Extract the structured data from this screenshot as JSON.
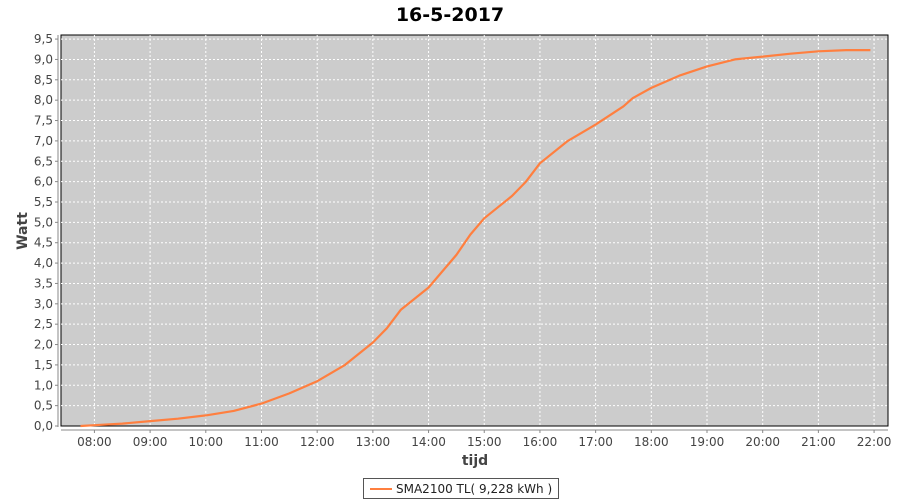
{
  "chart_data": {
    "type": "line",
    "title": "16-5-2017",
    "xlabel": "tijd",
    "ylabel": "Watt",
    "xlim": [
      "07:24",
      "22:15"
    ],
    "ylim": [
      0,
      9.6
    ],
    "x_ticks": [
      "08:00",
      "09:00",
      "10:00",
      "11:00",
      "12:00",
      "13:00",
      "14:00",
      "15:00",
      "16:00",
      "17:00",
      "18:00",
      "19:00",
      "20:00",
      "21:00",
      "22:00"
    ],
    "y_ticks": [
      "0,0",
      "0,5",
      "1,0",
      "1,5",
      "2,0",
      "2,5",
      "3,0",
      "3,5",
      "4,0",
      "4,5",
      "5,0",
      "5,5",
      "6,0",
      "6,5",
      "7,0",
      "7,5",
      "8,0",
      "8,5",
      "9,0",
      "9,5"
    ],
    "grid": true,
    "legend_position": "bottom",
    "background": "#cccccc",
    "series": [
      {
        "name": "SMA2100 TL( 9,228 kWh )",
        "color": "#ff7f3f",
        "x": [
          "07:45",
          "08:00",
          "08:30",
          "09:00",
          "09:30",
          "10:00",
          "10:30",
          "11:00",
          "11:30",
          "12:00",
          "12:30",
          "13:00",
          "13:15",
          "13:30",
          "14:00",
          "14:30",
          "14:45",
          "15:00",
          "15:30",
          "15:45",
          "16:00",
          "16:30",
          "17:00",
          "17:30",
          "17:40",
          "18:00",
          "18:30",
          "19:00",
          "19:30",
          "20:00",
          "20:30",
          "21:00",
          "21:30",
          "21:56"
        ],
        "values": [
          0.0,
          0.02,
          0.06,
          0.12,
          0.18,
          0.26,
          0.37,
          0.55,
          0.8,
          1.1,
          1.5,
          2.05,
          2.4,
          2.85,
          3.4,
          4.2,
          4.7,
          5.1,
          5.65,
          6.0,
          6.45,
          7.0,
          7.4,
          7.85,
          8.05,
          8.3,
          8.6,
          8.83,
          9.0,
          9.07,
          9.14,
          9.2,
          9.23,
          9.23
        ]
      }
    ]
  }
}
